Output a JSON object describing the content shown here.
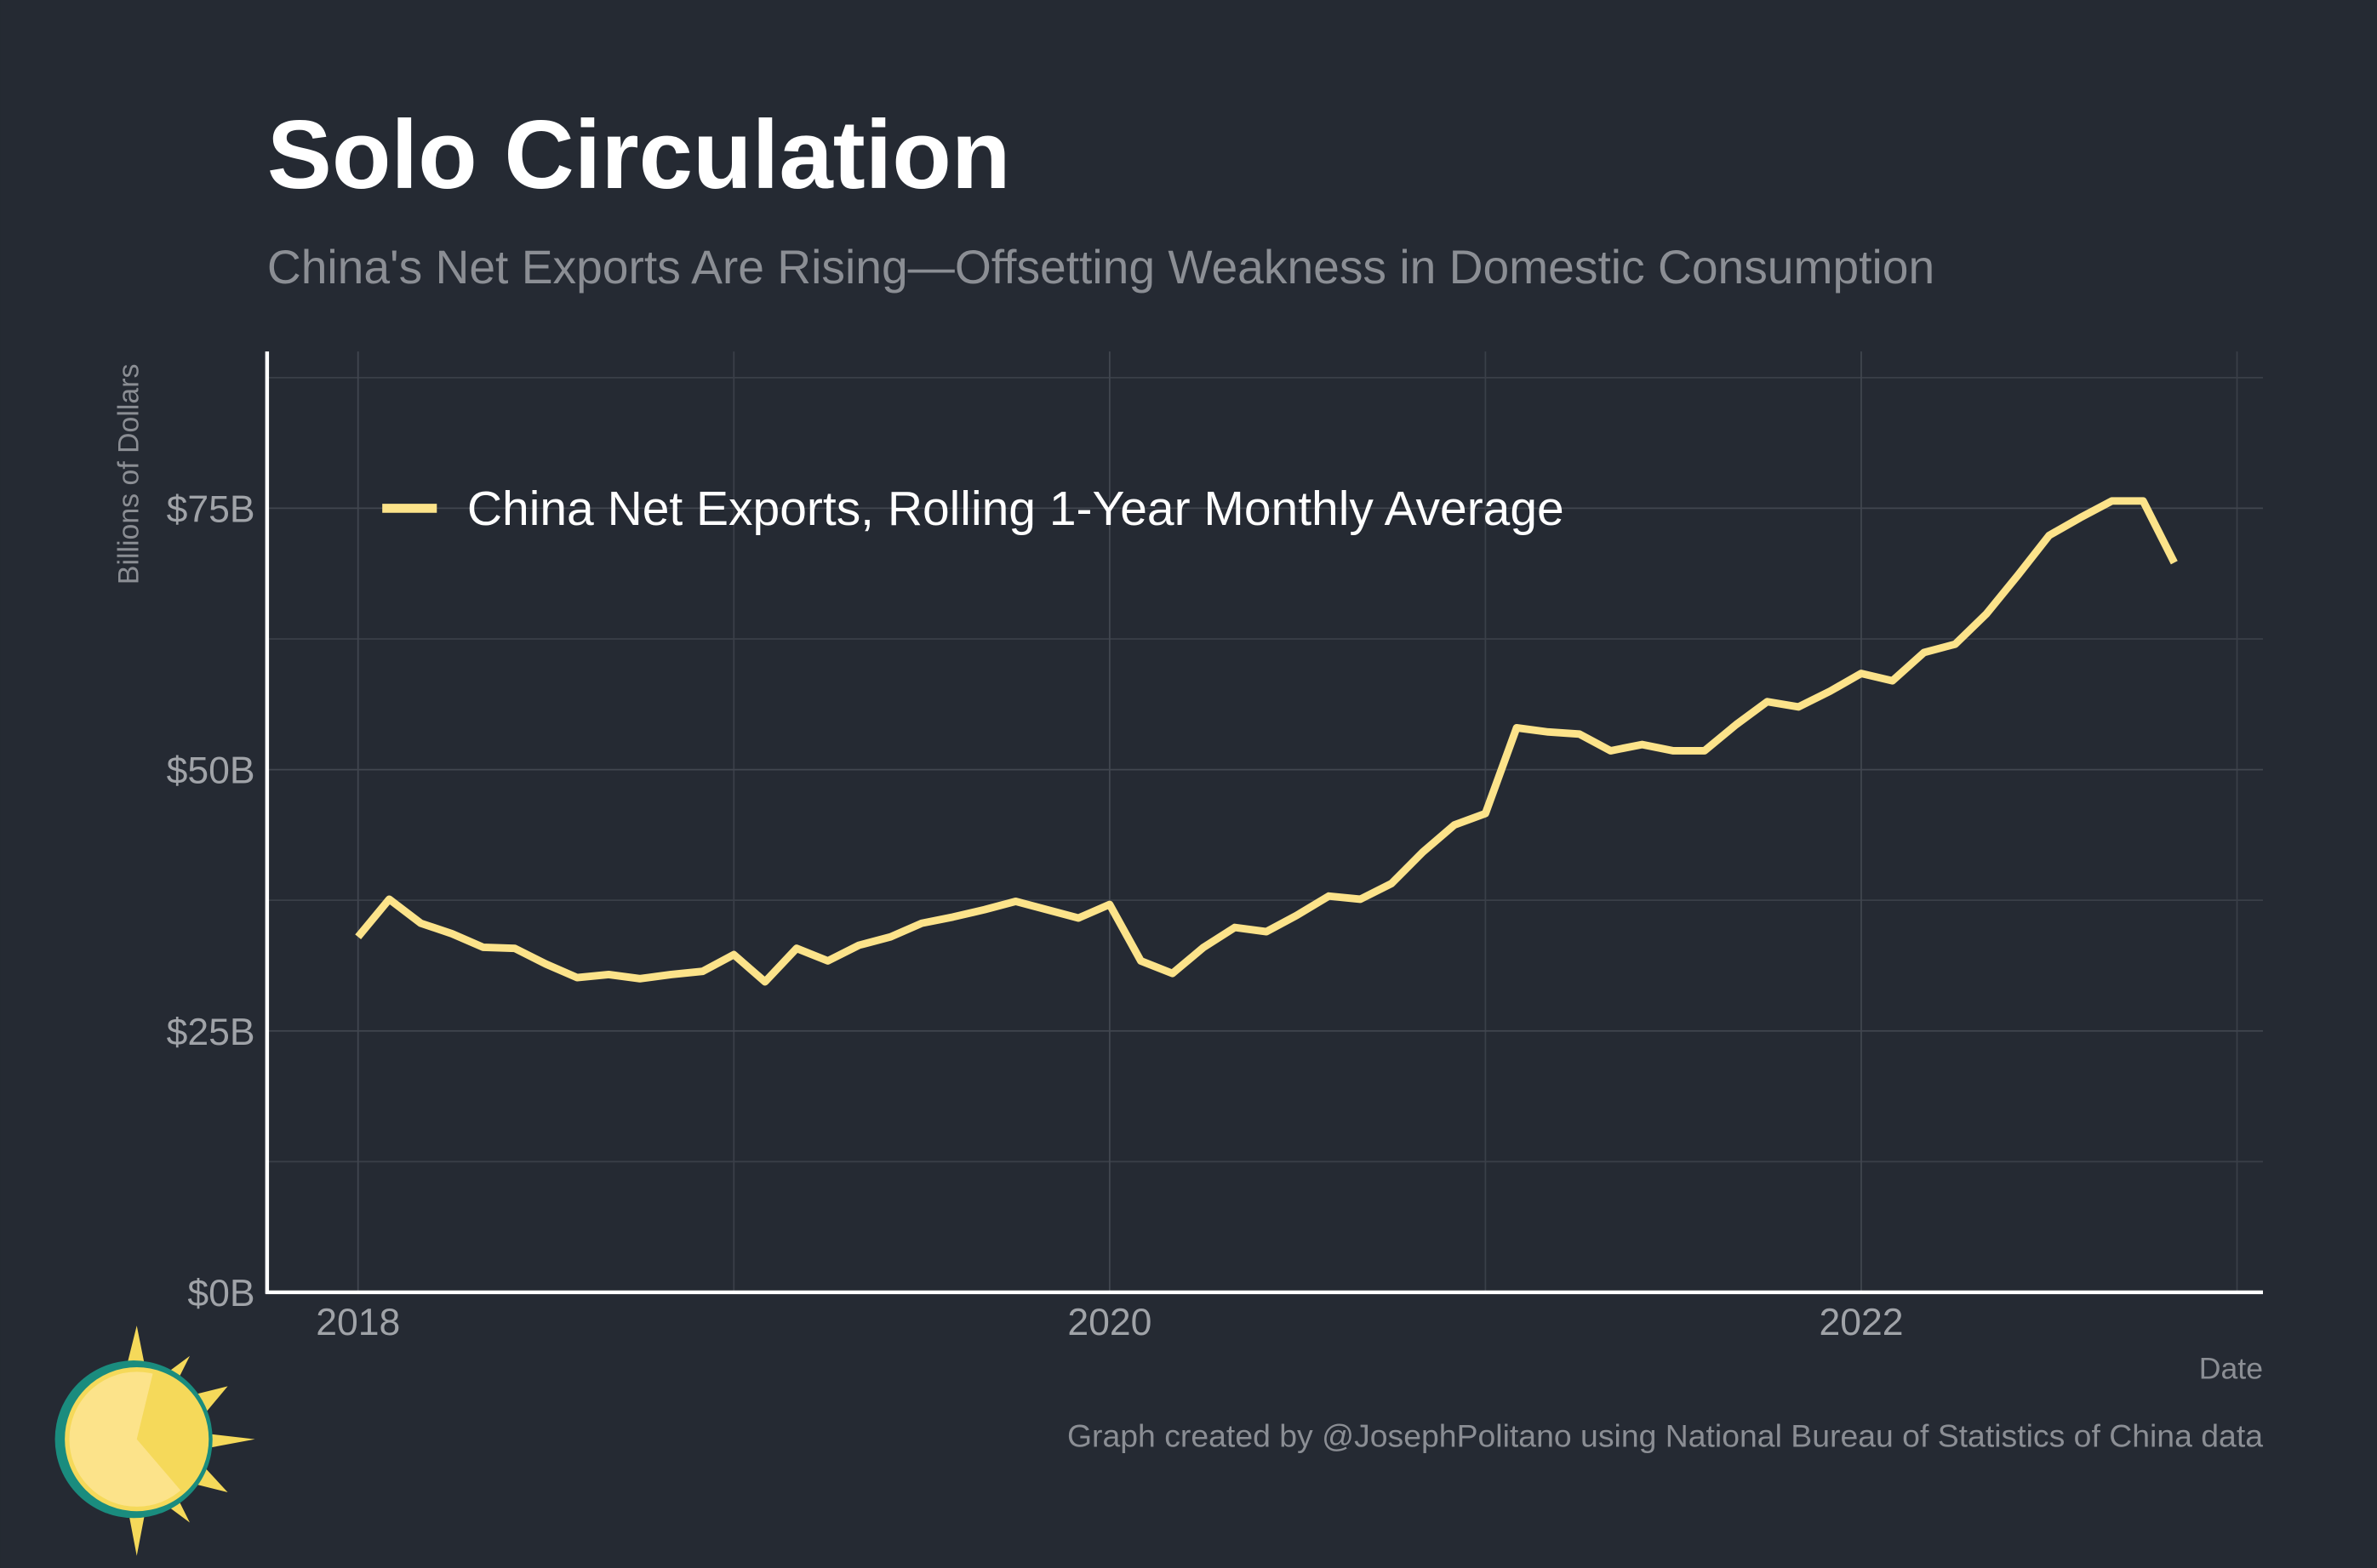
{
  "chart_data": {
    "type": "line",
    "title": "Solo Circulation",
    "subtitle": "China's Net Exports Are Rising—Offsetting Weakness in Domestic Consumption",
    "y_label": "Billions of Dollars",
    "x_label": "Date",
    "caption": "Graph created by @JosephPolitano using National Bureau of Statistics of China data",
    "x": [
      2018,
      2018.083,
      2018.167,
      2018.25,
      2018.333,
      2018.417,
      2018.5,
      2018.583,
      2018.667,
      2018.75,
      2018.833,
      2018.917,
      2019,
      2019.083,
      2019.167,
      2019.25,
      2019.333,
      2019.417,
      2019.5,
      2019.583,
      2019.667,
      2019.75,
      2019.833,
      2019.917,
      2020,
      2020.083,
      2020.167,
      2020.25,
      2020.333,
      2020.417,
      2020.5,
      2020.583,
      2020.667,
      2020.75,
      2020.833,
      2020.917,
      2021,
      2021.083,
      2021.167,
      2021.25,
      2021.333,
      2021.417,
      2021.5,
      2021.583,
      2021.667,
      2021.75,
      2021.833,
      2021.917,
      2022,
      2022.083,
      2022.167,
      2022.25,
      2022.333,
      2022.417,
      2022.5,
      2022.583,
      2022.667,
      2022.75,
      2022.833
    ],
    "series": [
      {
        "name": "China Net Exports, Rolling 1-Year Monthly Average",
        "color": "#fce38a",
        "values": [
          34.0,
          37.6,
          35.3,
          34.3,
          33.0,
          32.9,
          31.4,
          30.1,
          30.4,
          30.0,
          30.4,
          30.7,
          32.3,
          29.7,
          32.9,
          31.7,
          33.2,
          34.0,
          35.3,
          35.9,
          36.6,
          37.4,
          36.6,
          35.8,
          37.1,
          31.7,
          30.5,
          33.0,
          34.9,
          34.5,
          36.1,
          37.9,
          37.6,
          39.1,
          42.1,
          44.7,
          45.8,
          54.0,
          53.6,
          53.4,
          51.8,
          52.4,
          51.8,
          51.8,
          54.3,
          56.5,
          56.0,
          57.5,
          59.2,
          58.5,
          61.2,
          62.0,
          64.9,
          68.6,
          72.4,
          74.1,
          75.7,
          75.7,
          69.8
        ]
      }
    ],
    "xlim": [
      2017.758,
      2023.069
    ],
    "xticks": [
      2018,
      2020,
      2022
    ],
    "xminor": [
      2019,
      2021,
      2023
    ],
    "ylim": [
      0,
      90
    ],
    "yticks": [
      {
        "value": 0,
        "label": "$0B"
      },
      {
        "value": 25,
        "label": "$25B"
      },
      {
        "value": 50,
        "label": "$50B"
      },
      {
        "value": 75,
        "label": "$75B"
      }
    ],
    "yminor": [
      12.5,
      37.5,
      62.5,
      87.5
    ],
    "grid": true,
    "legend": "top-left"
  }
}
